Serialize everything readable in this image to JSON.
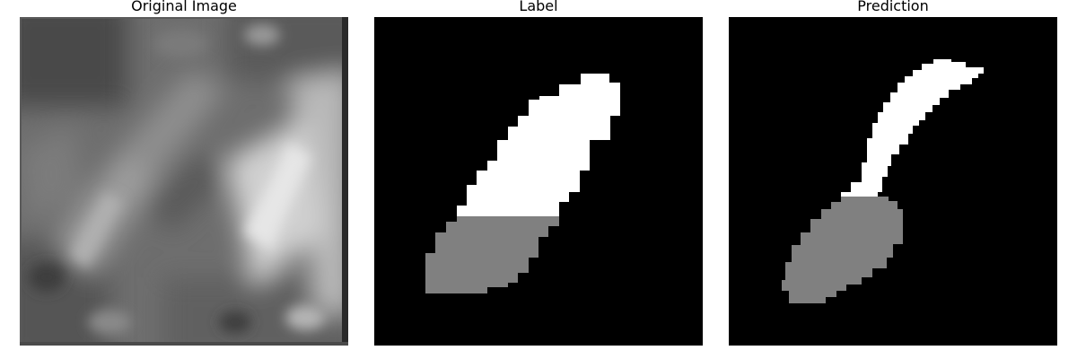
{
  "panels": {
    "original": {
      "title": "Original Image"
    },
    "label": {
      "title": "Label"
    },
    "prediction": {
      "title": "Prediction"
    }
  },
  "colors": {
    "background": "#000000",
    "foreground_class": "#ffffff",
    "secondary_class": "#808080"
  }
}
